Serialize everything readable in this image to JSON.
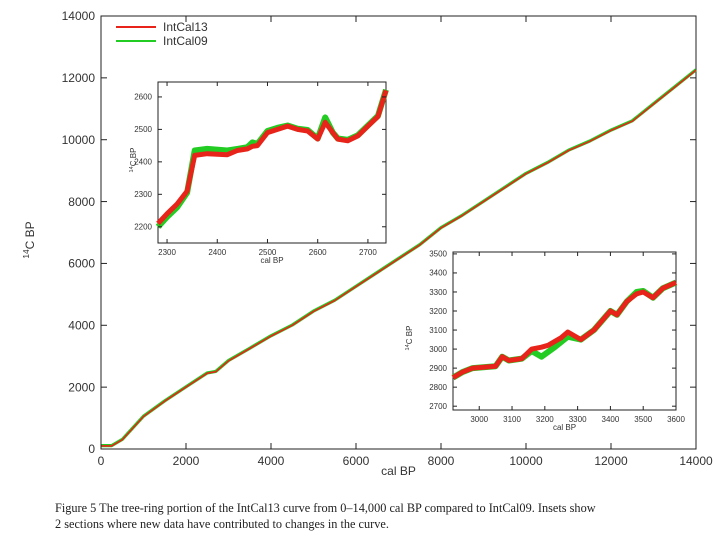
{
  "chart_data": [
    {
      "type": "line",
      "role": "main",
      "xlabel": "cal BP",
      "ylabel_sup": "14",
      "ylabel": "C BP",
      "xlim": [
        0,
        14000
      ],
      "ylim": [
        0,
        14000
      ],
      "xticks": [
        0,
        2000,
        4000,
        6000,
        8000,
        10000,
        12000,
        14000
      ],
      "yticks": [
        0,
        2000,
        4000,
        6000,
        8000,
        10000,
        12000,
        14000
      ],
      "legend": {
        "position": "top-left",
        "entries": [
          "IntCal13",
          "IntCal09"
        ]
      },
      "series": [
        {
          "name": "IntCal09",
          "color": "#22cc22",
          "x": [
            0,
            250,
            500,
            1000,
            1500,
            2000,
            2500,
            2700,
            3000,
            3500,
            4000,
            4500,
            5000,
            5500,
            6000,
            6500,
            7000,
            7500,
            8000,
            8500,
            9000,
            9500,
            10000,
            10500,
            11000,
            11500,
            12000,
            12500,
            13000,
            13500,
            14000
          ],
          "y": [
            110,
            110,
            310,
            1060,
            1560,
            2010,
            2460,
            2510,
            2860,
            3260,
            3660,
            4010,
            4460,
            4810,
            5260,
            5710,
            6160,
            6610,
            7160,
            7560,
            8010,
            8460,
            8910,
            9260,
            9660,
            9960,
            10310,
            10610,
            11160,
            11710,
            12260
          ]
        },
        {
          "name": "IntCal13",
          "color": "#e8241a",
          "x": [
            0,
            250,
            500,
            1000,
            1500,
            2000,
            2500,
            2700,
            3000,
            3500,
            4000,
            4500,
            5000,
            5500,
            6000,
            6500,
            7000,
            7500,
            8000,
            8500,
            9000,
            9500,
            10000,
            10500,
            11000,
            11500,
            12000,
            12500,
            13000,
            13500,
            14000
          ],
          "y": [
            100,
            100,
            300,
            1050,
            1550,
            2000,
            2450,
            2500,
            2850,
            3250,
            3650,
            4000,
            4450,
            4800,
            5250,
            5700,
            6150,
            6600,
            7150,
            7550,
            8000,
            8450,
            8900,
            9250,
            9650,
            9950,
            10300,
            10600,
            11150,
            11700,
            12250
          ]
        }
      ]
    },
    {
      "type": "line",
      "role": "inset-1",
      "xlabel": "cal BP",
      "ylabel_sup": "14",
      "ylabel": "C BP",
      "xlim": [
        2282,
        2736
      ],
      "ylim": [
        2150,
        2646
      ],
      "xticks": [
        2300,
        2400,
        2500,
        2600,
        2700
      ],
      "yticks": [
        2200,
        2300,
        2400,
        2500,
        2600
      ],
      "series": [
        {
          "name": "IntCal09",
          "color": "#22cc22",
          "x": [
            2282,
            2300,
            2320,
            2340,
            2355,
            2380,
            2420,
            2440,
            2460,
            2470,
            2480,
            2500,
            2520,
            2540,
            2560,
            2580,
            2600,
            2615,
            2630,
            2640,
            2660,
            2680,
            2700,
            2720,
            2736
          ],
          "y": [
            2200,
            2230,
            2260,
            2305,
            2435,
            2440,
            2435,
            2440,
            2445,
            2460,
            2455,
            2495,
            2505,
            2512,
            2502,
            2498,
            2472,
            2537,
            2490,
            2472,
            2468,
            2482,
            2512,
            2542,
            2622
          ]
        },
        {
          "name": "IntCal13",
          "color": "#e8241a",
          "x": [
            2282,
            2300,
            2320,
            2340,
            2355,
            2380,
            2420,
            2440,
            2460,
            2470,
            2480,
            2500,
            2520,
            2540,
            2560,
            2580,
            2600,
            2615,
            2630,
            2640,
            2660,
            2680,
            2700,
            2720,
            2736
          ],
          "y": [
            2210,
            2240,
            2270,
            2310,
            2420,
            2425,
            2422,
            2435,
            2440,
            2448,
            2450,
            2490,
            2500,
            2510,
            2500,
            2495,
            2470,
            2522,
            2490,
            2470,
            2465,
            2480,
            2510,
            2540,
            2620
          ]
        }
      ]
    },
    {
      "type": "line",
      "role": "inset-2",
      "xlabel": "cal BP",
      "ylabel_sup": "14",
      "ylabel": "C BP",
      "xlim": [
        2920,
        3600
      ],
      "ylim": [
        2680,
        3510
      ],
      "xticks": [
        3000,
        3100,
        3200,
        3300,
        3400,
        3500,
        3600
      ],
      "yticks": [
        2700,
        2800,
        2900,
        3000,
        3100,
        3200,
        3300,
        3400,
        3500
      ],
      "series": [
        {
          "name": "IntCal09",
          "color": "#22cc22",
          "x": [
            2920,
            2950,
            2980,
            3050,
            3070,
            3090,
            3130,
            3160,
            3190,
            3230,
            3270,
            3310,
            3350,
            3400,
            3420,
            3450,
            3480,
            3500,
            3530,
            3560,
            3600
          ],
          "y": [
            2850,
            2880,
            2900,
            2910,
            2960,
            2940,
            2950,
            2990,
            2960,
            3010,
            3065,
            3050,
            3100,
            3200,
            3180,
            3250,
            3300,
            3305,
            3270,
            3320,
            3350
          ]
        },
        {
          "name": "IntCal13",
          "color": "#e8241a",
          "x": [
            2920,
            2950,
            2980,
            3050,
            3070,
            3090,
            3130,
            3160,
            3190,
            3210,
            3250,
            3270,
            3310,
            3350,
            3400,
            3420,
            3450,
            3480,
            3500,
            3530,
            3560,
            3600
          ],
          "y": [
            2850,
            2880,
            2900,
            2910,
            2960,
            2940,
            2950,
            3000,
            3010,
            3020,
            3060,
            3090,
            3050,
            3100,
            3200,
            3180,
            3250,
            3290,
            3300,
            3270,
            3320,
            3350
          ]
        }
      ]
    }
  ],
  "caption": {
    "line1": "Figure 5  The tree-ring portion of the IntCal13 curve from 0–14,000 cal BP compared to IntCal09. Insets show",
    "line2": "2 sections where new data have contributed to changes in the curve."
  }
}
